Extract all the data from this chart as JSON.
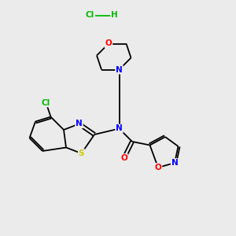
{
  "bg_color": "#ebebeb",
  "atom_colors": {
    "C": "#000000",
    "N": "#0000ff",
    "O": "#ff0000",
    "S": "#cccc00",
    "Cl": "#00bb00",
    "H": "#000000"
  },
  "bond_color": "#000000",
  "hcl_color": "#00bb00",
  "fig_size": [
    3.0,
    3.0
  ],
  "dpi": 100
}
